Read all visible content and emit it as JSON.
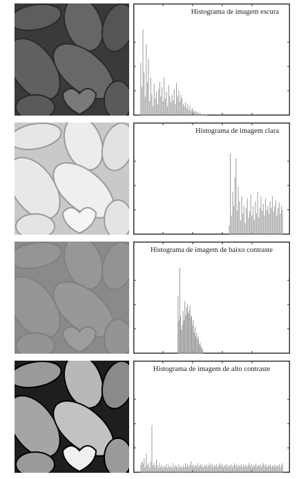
{
  "chart_data": [
    {
      "type": "bar",
      "title": "Histograma de imagem escura",
      "title_anchor": "right",
      "tone": "dark",
      "xlim": [
        0,
        255
      ],
      "ylim": [
        0,
        1
      ],
      "values": [
        0.55,
        0.3,
        0.9,
        0.45,
        0.2,
        0.75,
        0.35,
        0.6,
        0.15,
        0.4,
        0.22,
        0.1,
        0.33,
        0.18,
        0.25,
        0.12,
        0.28,
        0.35,
        0.2,
        0.3,
        0.15,
        0.4,
        0.18,
        0.25,
        0.1,
        0.32,
        0.2,
        0.14,
        0.22,
        0.16,
        0.28,
        0.12,
        0.34,
        0.2,
        0.26,
        0.15,
        0.22,
        0.18,
        0.12,
        0.1,
        0.14,
        0.08,
        0.12,
        0.06,
        0.1,
        0.05,
        0.08,
        0.06,
        0.04,
        0.05,
        0.03,
        0.04,
        0.02,
        0.03,
        0.02,
        0.01,
        0.02,
        0.01,
        0.01,
        0.01,
        0,
        0,
        0,
        0,
        0,
        0,
        0,
        0,
        0,
        0,
        0,
        0,
        0,
        0,
        0,
        0,
        0,
        0,
        0,
        0,
        0,
        0,
        0,
        0,
        0,
        0,
        0,
        0,
        0,
        0,
        0,
        0,
        0,
        0,
        0,
        0,
        0,
        0,
        0,
        0,
        0,
        0,
        0,
        0,
        0,
        0,
        0,
        0,
        0,
        0,
        0,
        0,
        0,
        0,
        0,
        0,
        0,
        0,
        0,
        0,
        0,
        0,
        0,
        0,
        0,
        0,
        0,
        0
      ]
    },
    {
      "type": "bar",
      "title": "Histograma de imagem clara",
      "title_anchor": "right",
      "tone": "light",
      "xlim": [
        0,
        255
      ],
      "ylim": [
        0,
        1
      ],
      "values": [
        0,
        0,
        0,
        0,
        0,
        0,
        0,
        0,
        0,
        0,
        0,
        0,
        0,
        0,
        0,
        0,
        0,
        0,
        0,
        0,
        0,
        0,
        0,
        0,
        0,
        0,
        0,
        0,
        0,
        0,
        0,
        0,
        0,
        0,
        0,
        0,
        0,
        0,
        0,
        0,
        0,
        0,
        0,
        0,
        0,
        0,
        0,
        0,
        0,
        0,
        0,
        0,
        0,
        0,
        0,
        0,
        0,
        0,
        0,
        0,
        0,
        0,
        0,
        0,
        0,
        0,
        0,
        0,
        0,
        0,
        0,
        0,
        0,
        0,
        0,
        0,
        0,
        0,
        0.1,
        0.85,
        0.2,
        0.45,
        0.3,
        0.6,
        0.8,
        0.25,
        0.5,
        0.35,
        0.15,
        0.4,
        0.22,
        0.3,
        0.12,
        0.28,
        0.38,
        0.18,
        0.25,
        0.42,
        0.2,
        0.3,
        0.15,
        0.35,
        0.22,
        0.45,
        0.18,
        0.28,
        0.4,
        0.25,
        0.32,
        0.2,
        0.38,
        0.26,
        0.3,
        0.22,
        0.35,
        0.28,
        0.4,
        0.24,
        0.3,
        0.36,
        0.2,
        0.28,
        0.34,
        0.22,
        0.3,
        0.26
      ]
    },
    {
      "type": "bar",
      "title": "Histograma de imagem de baixo contraste",
      "title_anchor": "middle",
      "tone": "low",
      "xlim": [
        0,
        255
      ],
      "ylim": [
        0,
        1
      ],
      "values": [
        0,
        0,
        0,
        0,
        0,
        0,
        0,
        0,
        0,
        0,
        0,
        0,
        0,
        0,
        0,
        0,
        0,
        0,
        0,
        0,
        0,
        0,
        0,
        0,
        0,
        0,
        0,
        0,
        0,
        0,
        0,
        0,
        0,
        0,
        0,
        0,
        0,
        0,
        0,
        0,
        0,
        0,
        0,
        0,
        0.6,
        0.35,
        0.9,
        0.4,
        0.25,
        0.3,
        0.45,
        0.35,
        0.55,
        0.4,
        0.48,
        0.52,
        0.42,
        0.45,
        0.5,
        0.38,
        0.4,
        0.3,
        0.35,
        0.22,
        0.28,
        0.18,
        0.22,
        0.15,
        0.18,
        0.1,
        0.12,
        0.08,
        0.06,
        0.04,
        0,
        0,
        0,
        0,
        0,
        0,
        0,
        0,
        0,
        0,
        0,
        0,
        0,
        0,
        0,
        0,
        0,
        0,
        0,
        0,
        0,
        0,
        0,
        0,
        0,
        0,
        0,
        0,
        0,
        0,
        0,
        0,
        0,
        0,
        0,
        0,
        0,
        0,
        0,
        0,
        0,
        0,
        0,
        0,
        0,
        0,
        0,
        0,
        0,
        0,
        0,
        0,
        0,
        0,
        0,
        0,
        0,
        0,
        0,
        0,
        0,
        0,
        0,
        0,
        0,
        0,
        0,
        0,
        0,
        0,
        0,
        0,
        0,
        0,
        0,
        0,
        0,
        0,
        0,
        0,
        0,
        0,
        0,
        0,
        0,
        0,
        0,
        0,
        0,
        0,
        0,
        0,
        0,
        0
      ]
    },
    {
      "type": "bar",
      "title": "Histograma de imagem de alto contraste",
      "title_anchor": "middle",
      "tone": "high",
      "xlim": [
        0,
        255
      ],
      "ylim": [
        0,
        1
      ],
      "values": [
        0.08,
        0.12,
        0.1,
        0.15,
        0.06,
        0.2,
        0.08,
        0.1,
        0.05,
        0.12,
        0.5,
        0.08,
        0.1,
        0.06,
        0.14,
        0.08,
        0.05,
        0.1,
        0.06,
        0.08,
        0.05,
        0.07,
        0.06,
        0.09,
        0.05,
        0.08,
        0.06,
        0.07,
        0.05,
        0.1,
        0.06,
        0.08,
        0.07,
        0.05,
        0.09,
        0.06,
        0.07,
        0.05,
        0.08,
        0.06,
        0.1,
        0.07,
        0.09,
        0.06,
        0.08,
        0.12,
        0.07,
        0.09,
        0.06,
        0.08,
        0.07,
        0.1,
        0.06,
        0.08,
        0.09,
        0.07,
        0.06,
        0.08,
        0.07,
        0.09,
        0.06,
        0.08,
        0.1,
        0.07,
        0.09,
        0.06,
        0.08,
        0.07,
        0.09,
        0.06,
        0.08,
        0.1,
        0.07,
        0.09,
        0.06,
        0.08,
        0.07,
        0.09,
        0.06,
        0.08,
        0.07,
        0.09,
        0.06,
        0.08,
        0.1,
        0.07,
        0.09,
        0.06,
        0.08,
        0.07,
        0.09,
        0.06,
        0.08,
        0.07,
        0.09,
        0.06,
        0.08,
        0.1,
        0.07,
        0.09,
        0.06,
        0.08,
        0.07,
        0.09,
        0.06,
        0.08,
        0.07,
        0.09,
        0.06,
        0.08,
        0.1,
        0.07,
        0.09,
        0.06,
        0.08,
        0.07,
        0.09,
        0.06,
        0.08,
        0.07,
        0.09,
        0.06,
        0.08,
        0.07,
        0.09,
        0.06,
        0.08,
        0.1
      ]
    }
  ]
}
